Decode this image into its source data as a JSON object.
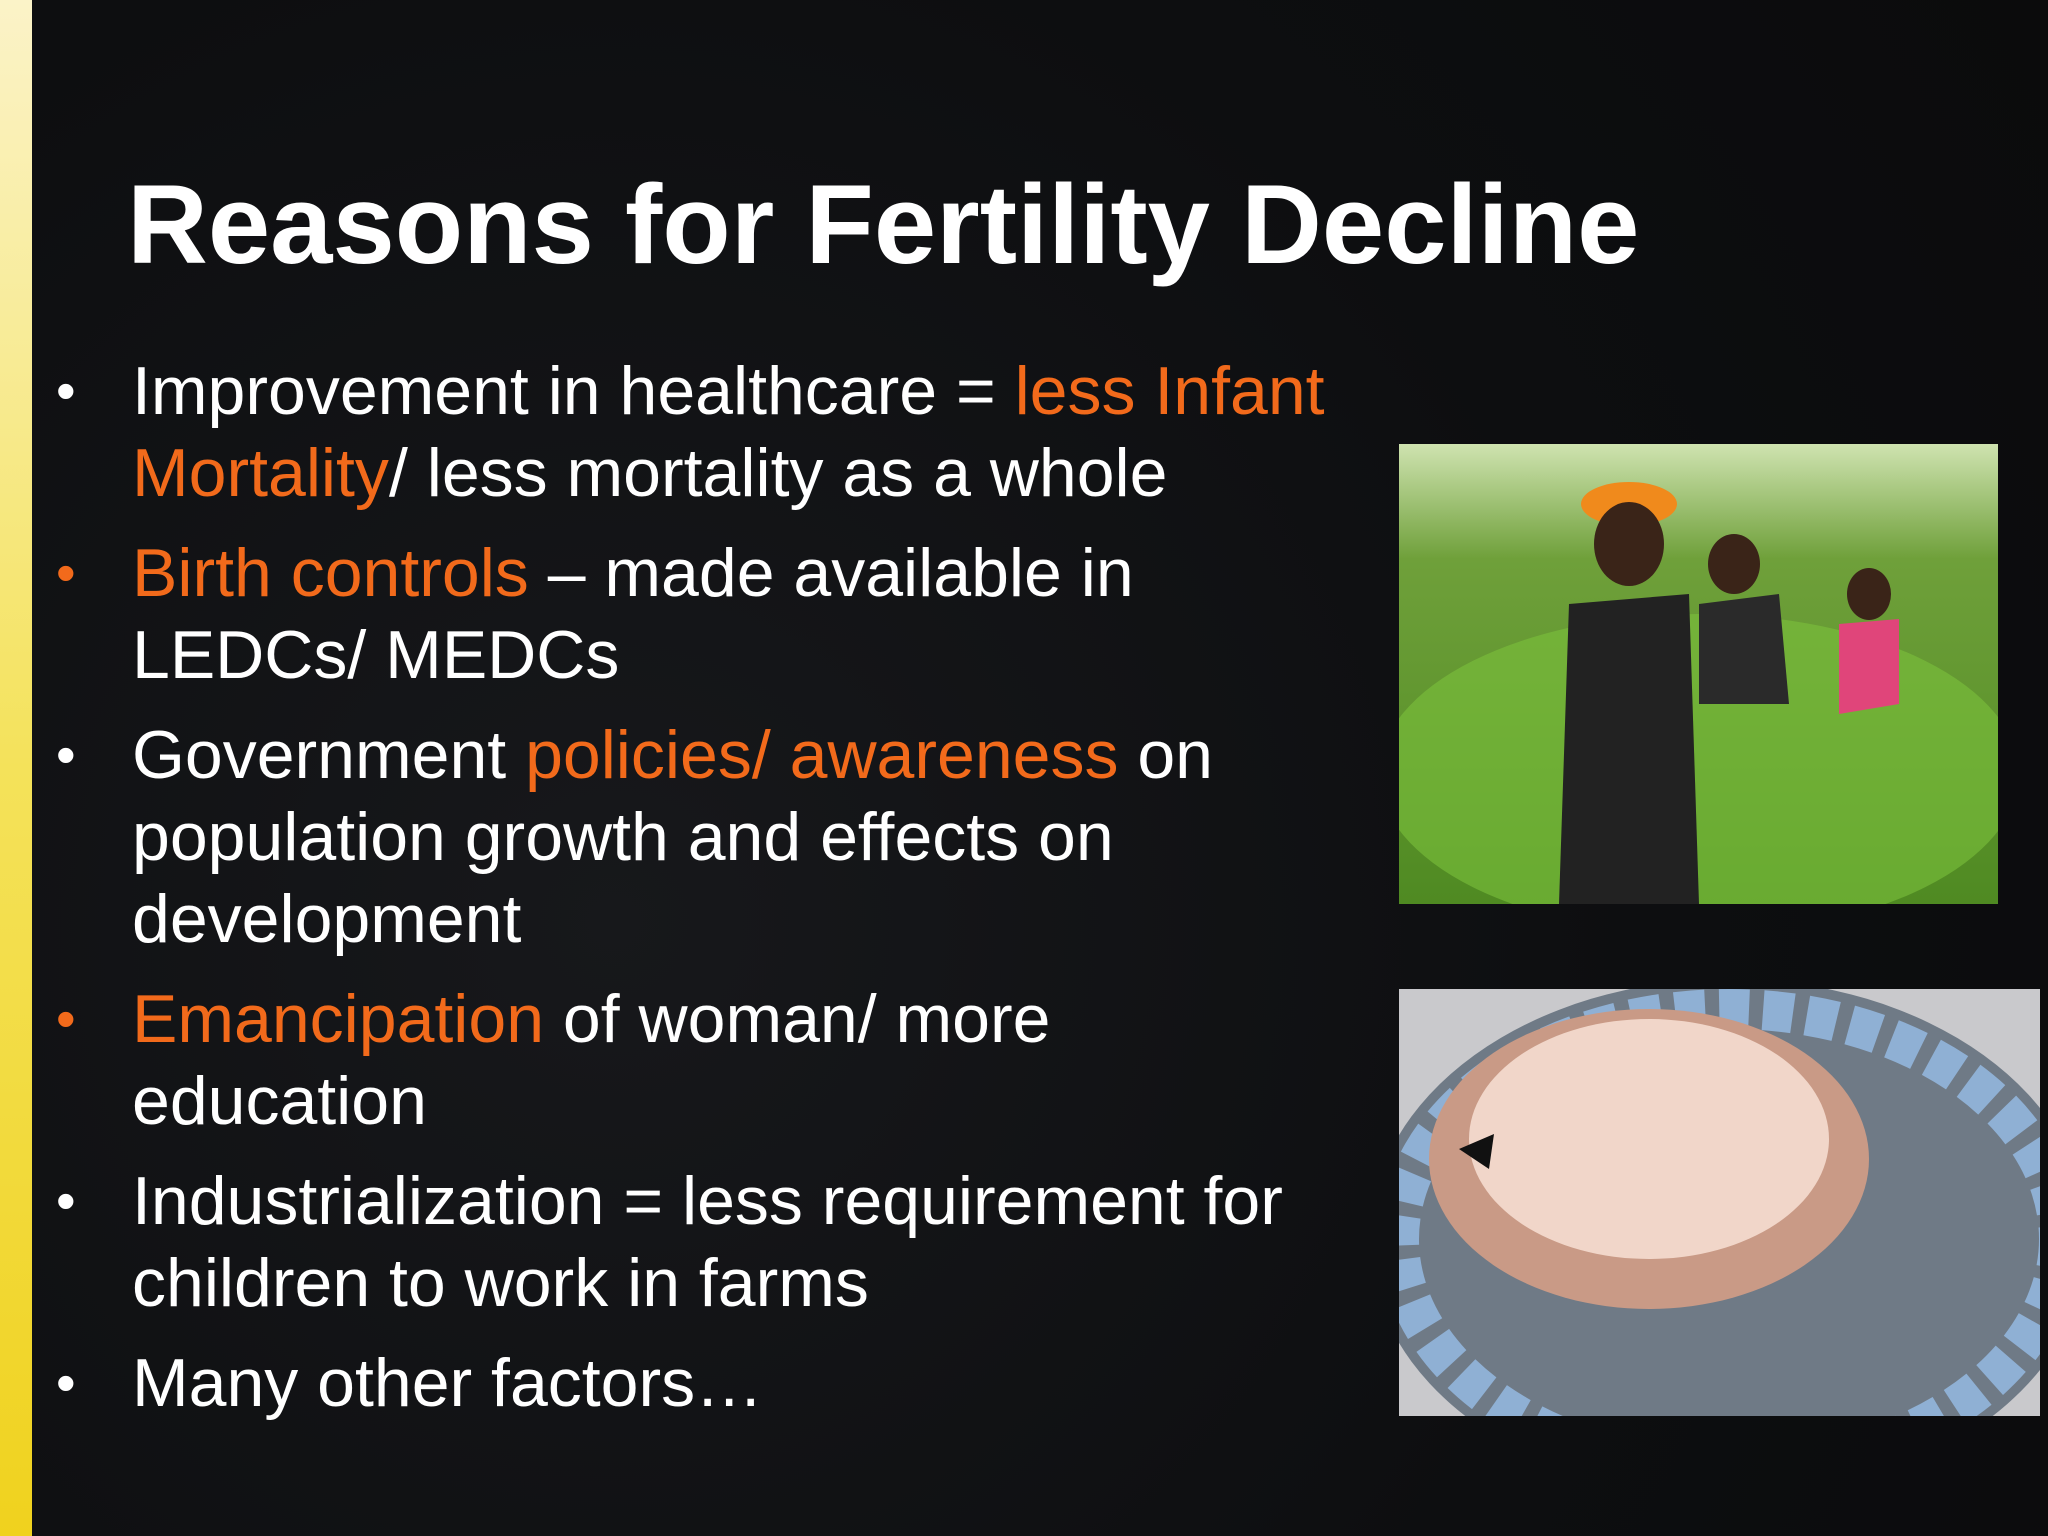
{
  "title": "Reasons for Fertility Decline",
  "bullets": [
    {
      "emphasis": false,
      "segments": [
        {
          "text": "Improvement in healthcare = ",
          "highlight": false
        },
        {
          "text": "less Infant Mortality",
          "highlight": true
        },
        {
          "text": "/ less mortality as a whole",
          "highlight": false
        }
      ]
    },
    {
      "emphasis": true,
      "segments": [
        {
          "text": "Birth controls",
          "highlight": true
        },
        {
          "text": " – made available in LEDCs/ MEDCs",
          "highlight": false
        }
      ]
    },
    {
      "emphasis": false,
      "segments": [
        {
          "text": "Government ",
          "highlight": false
        },
        {
          "text": "policies/ awareness",
          "highlight": true
        },
        {
          "text": " on population growth and effects on development",
          "highlight": false
        }
      ]
    },
    {
      "emphasis": true,
      "segments": [
        {
          "text": "Emancipation",
          "highlight": true
        },
        {
          "text": " of woman/ more education",
          "highlight": false
        }
      ]
    },
    {
      "emphasis": false,
      "segments": [
        {
          "text": "Industrialization = less requirement for children to work in farms",
          "highlight": false
        }
      ]
    },
    {
      "emphasis": false,
      "segments": [
        {
          "text": "Many other factors…",
          "highlight": false
        }
      ]
    }
  ]
}
